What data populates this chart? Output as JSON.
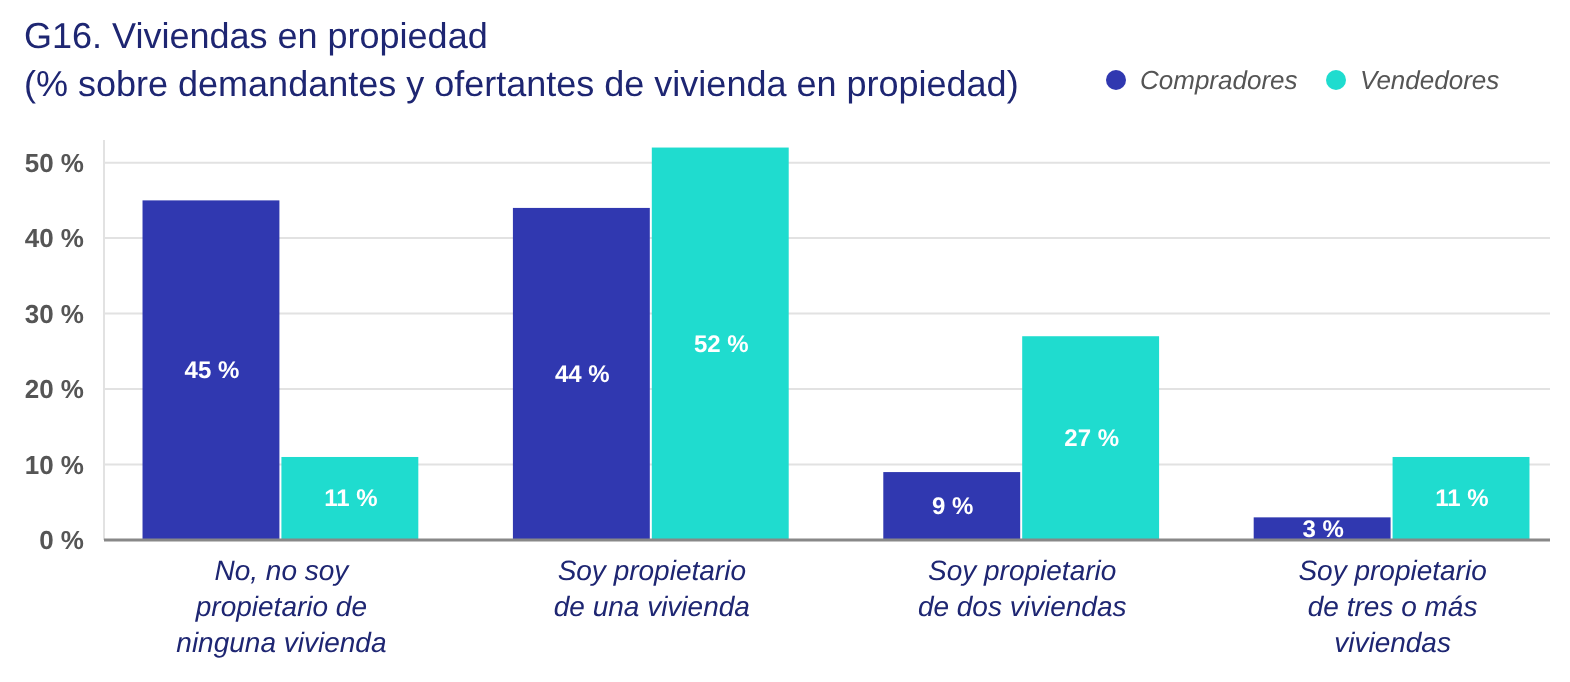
{
  "chart_data": {
    "type": "bar",
    "title": "G16. Viviendas en propiedad",
    "subtitle": "(% sobre demandantes y ofertantes de vivienda en propiedad)",
    "categories": [
      "No, no soy propietario de ninguna vivienda",
      "Soy propietario de una vivienda",
      "Soy propietario de dos viviendas",
      "Soy propietario de tres o más viviendas"
    ],
    "series": [
      {
        "name": "Compradores",
        "color": "#3038b0",
        "values": [
          45,
          44,
          9,
          3
        ],
        "value_labels": [
          "45 %",
          "44 %",
          "9 %",
          "3 %"
        ]
      },
      {
        "name": "Vendedores",
        "color": "#1fdccf",
        "values": [
          11,
          52,
          27,
          11
        ],
        "value_labels": [
          "11 %",
          "52 %",
          "27 %",
          "11 %"
        ]
      }
    ],
    "ylim": [
      0,
      53
    ],
    "yticks": [
      {
        "value": 0,
        "label": "0 %"
      },
      {
        "value": 10,
        "label": "10 %"
      },
      {
        "value": 20,
        "label": "20 %"
      },
      {
        "value": 30,
        "label": "30 %"
      },
      {
        "value": 40,
        "label": "40 %"
      },
      {
        "value": 50,
        "label": "50 %"
      }
    ],
    "grid": "y",
    "legend": "top right"
  }
}
